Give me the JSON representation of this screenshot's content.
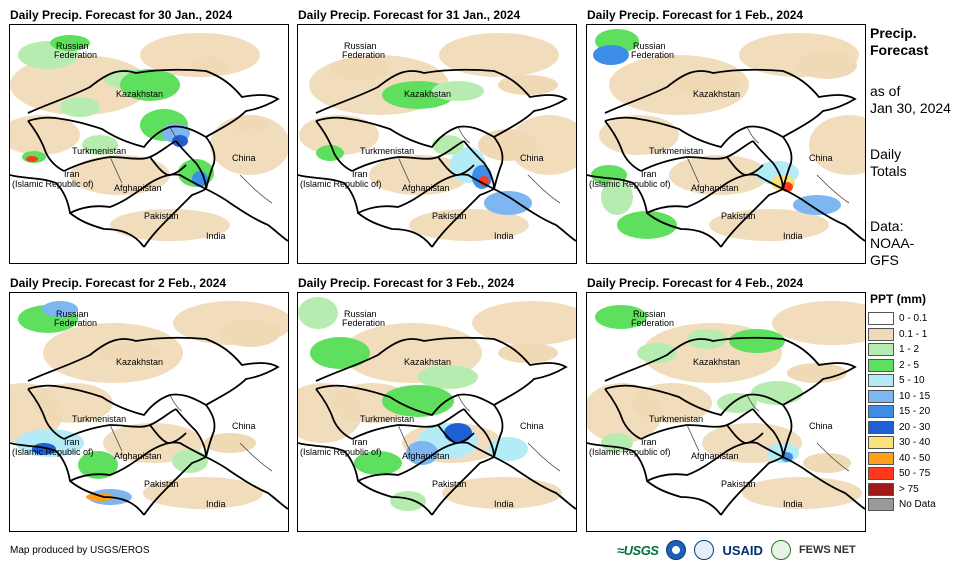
{
  "panels": [
    {
      "title": "Daily Precip. Forecast for 30 Jan., 2024"
    },
    {
      "title": "Daily Precip. Forecast for 31 Jan., 2024"
    },
    {
      "title": "Daily Precip. Forecast for 1 Feb., 2024"
    },
    {
      "title": "Daily Precip. Forecast for 2 Feb., 2024"
    },
    {
      "title": "Daily Precip. Forecast for 3 Feb., 2024"
    },
    {
      "title": "Daily Precip. Forecast for 4 Feb., 2024"
    }
  ],
  "map_labels": {
    "russia_1": "Russian",
    "russia_2": "Federation",
    "kazakhstan": "Kazakhstan",
    "turkmenistan": "Turkmenistan",
    "iran_1": "Iran",
    "iran_2": "(Islamic Republic of)",
    "afghanistan": "Afghanistan",
    "pakistan": "Pakistan",
    "china": "China",
    "india": "India"
  },
  "sidebar": {
    "heading_1": "Precip.",
    "heading_2": "Forecast",
    "asof_1": "as of",
    "asof_2": "Jan 30, 2024",
    "daily_1": "Daily",
    "daily_2": "Totals",
    "data_1": "Data:",
    "data_2": "NOAA-",
    "data_3": "GFS"
  },
  "legend": {
    "title": "PPT (mm)",
    "items": [
      {
        "label": "0 - 0.1",
        "color": "#ffffff"
      },
      {
        "label": "0.1 - 1",
        "color": "#f0d9b5"
      },
      {
        "label": "1 - 2",
        "color": "#b7ecb0"
      },
      {
        "label": "2 - 5",
        "color": "#5ee05e"
      },
      {
        "label": "5 - 10",
        "color": "#b3ecf7"
      },
      {
        "label": "10 - 15",
        "color": "#7db6f0"
      },
      {
        "label": "15 - 20",
        "color": "#3d8ee6"
      },
      {
        "label": "20 - 30",
        "color": "#1f5fd6"
      },
      {
        "label": "30 - 40",
        "color": "#fae27a"
      },
      {
        "label": "40 - 50",
        "color": "#ff9f1a"
      },
      {
        "label": "50 - 75",
        "color": "#ff3a1a"
      },
      {
        "label": "> 75",
        "color": "#a01818"
      },
      {
        "label": "No Data",
        "color": "#9a9a9a"
      }
    ]
  },
  "footer": {
    "credit": "Map produced by USGS/EROS",
    "logo_usgs": "≈USGS",
    "logo_usaid": "USAID",
    "logo_fews": "FEWS NET"
  }
}
